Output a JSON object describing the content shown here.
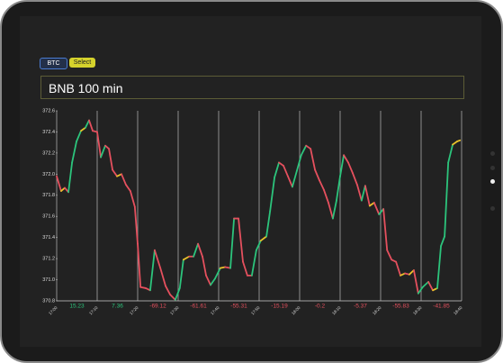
{
  "toolbar": {
    "buttons": [
      "BTC",
      "Select"
    ]
  },
  "title_box": "BNB 100 min",
  "chart_data": {
    "type": "line",
    "x": [
      0,
      1.1,
      2,
      2.9,
      3.8,
      4.9,
      6,
      7.1,
      8,
      8.9,
      10,
      10.9,
      12,
      12.9,
      13.8,
      14.9,
      16,
      17.1,
      18.2,
      19.3,
      20,
      20.7,
      22,
      23.1,
      24.2,
      25.6,
      26.9,
      28,
      29.3,
      30.4,
      31.3,
      32.7,
      33.8,
      34.9,
      36,
      36.9,
      38,
      39.1,
      40.4,
      41.6,
      42.9,
      43.8,
      44.9,
      46,
      47.1,
      48.2,
      49.3,
      50.4,
      51.8,
      52.7,
      53.8,
      54.9,
      56,
      57.1,
      58.2,
      59.3,
      60.4,
      61.6,
      62.7,
      63.8,
      64.9,
      66,
      67.1,
      68.2,
      69.1,
      70,
      70.9,
      72,
      73.1,
      74.2,
      75.3,
      76.2,
      77.3,
      78.4,
      79.6,
      80.7,
      81.6,
      82.7,
      83.8,
      84.9,
      86,
      87.1,
      88.2,
      89.3,
      90.4,
      91.8,
      92.9,
      94,
      94.9,
      95.8,
      96.7,
      97.8,
      98.9,
      99.6
    ],
    "values": [
      371.98,
      371.84,
      371.87,
      371.83,
      372.11,
      372.31,
      372.41,
      372.44,
      372.51,
      372.41,
      372.4,
      372.16,
      372.27,
      372.24,
      372.04,
      371.98,
      372.0,
      371.9,
      371.84,
      371.69,
      371.34,
      370.93,
      370.92,
      370.9,
      371.28,
      371.11,
      370.94,
      370.86,
      370.81,
      370.92,
      371.19,
      371.22,
      371.22,
      371.34,
      371.22,
      371.04,
      370.95,
      371.01,
      371.11,
      371.12,
      371.11,
      371.58,
      371.58,
      371.17,
      371.04,
      371.04,
      371.28,
      371.37,
      371.41,
      371.65,
      371.97,
      372.11,
      372.08,
      371.98,
      371.88,
      372.03,
      372.18,
      372.27,
      372.24,
      372.04,
      371.94,
      371.85,
      371.73,
      371.58,
      371.75,
      371.98,
      372.18,
      372.11,
      372.01,
      371.9,
      371.75,
      371.89,
      371.7,
      371.73,
      371.62,
      371.67,
      371.28,
      371.19,
      371.17,
      371.04,
      371.06,
      371.05,
      371.09,
      370.87,
      370.93,
      370.98,
      370.9,
      370.92,
      371.32,
      371.41,
      372.11,
      372.28,
      372.31,
      372.32
    ],
    "colors": {
      "up": "#2cc47c",
      "flat": "#e8c12a",
      "down": "#e5505e"
    },
    "xlim": [
      0,
      100
    ],
    "xticks": [
      {
        "value": 0,
        "label": "17:00"
      },
      {
        "value": 10,
        "label": "17:10"
      },
      {
        "value": 20,
        "label": "17:20"
      },
      {
        "value": 30,
        "label": "17:30"
      },
      {
        "value": 40,
        "label": "17:40"
      },
      {
        "value": 50,
        "label": "17:50"
      },
      {
        "value": 60,
        "label": "18:00"
      },
      {
        "value": 70,
        "label": "18:10"
      },
      {
        "value": 80,
        "label": "18:20"
      },
      {
        "value": 90,
        "label": "18:30"
      },
      {
        "value": 100,
        "label": "18:40"
      }
    ],
    "ylim": [
      370.8,
      372.6
    ],
    "yticks": [
      370.8,
      {
        "value": 371,
        "label": "371.0"
      },
      371.2,
      371.4,
      371.6,
      371.8,
      {
        "value": 372,
        "label": "372.0"
      },
      372.2,
      372.4,
      372.6
    ],
    "interval_changes": [
      15.23,
      7.36,
      -69.12,
      -61.61,
      -55.31,
      -15.19,
      -0.2,
      -5.37,
      -55.83,
      -41.85
    ],
    "grid": true
  }
}
